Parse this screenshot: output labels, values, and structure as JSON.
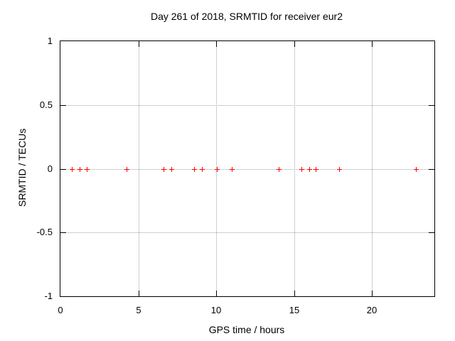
{
  "chart_data": {
    "type": "scatter",
    "title": "Day 261 of 2018, SRMTID for receiver eur2",
    "xlabel": "GPS time / hours",
    "ylabel": "SRMTID / TECUs",
    "xlim": [
      0,
      24
    ],
    "ylim": [
      -1,
      1
    ],
    "grid": true,
    "legend": "none",
    "marker": "plus",
    "marker_color": "#ff0000",
    "grid_color": "#a0a0a0",
    "axis_color": "#000000",
    "background_color": "#ffffff",
    "xticks": [
      {
        "v": 0,
        "label": "0"
      },
      {
        "v": 5,
        "label": "5"
      },
      {
        "v": 10,
        "label": "10"
      },
      {
        "v": 15,
        "label": "15"
      },
      {
        "v": 20,
        "label": "20"
      }
    ],
    "yticks": [
      {
        "v": 1,
        "label": "1"
      },
      {
        "v": 0.5,
        "label": "0.5"
      },
      {
        "v": 0,
        "label": "0"
      },
      {
        "v": -0.5,
        "label": "-0.5"
      },
      {
        "v": -1,
        "label": "-1"
      }
    ],
    "series": [
      {
        "name": "SRMTID",
        "x": [
          0.75,
          1.25,
          1.7,
          4.25,
          6.6,
          7.1,
          8.6,
          9.1,
          10.05,
          11.0,
          14.0,
          15.45,
          15.95,
          16.4,
          17.9,
          22.8
        ],
        "y": [
          0,
          0,
          0,
          0,
          0,
          0,
          0,
          0,
          0,
          0,
          0,
          0,
          0,
          0,
          0,
          0
        ]
      }
    ]
  }
}
